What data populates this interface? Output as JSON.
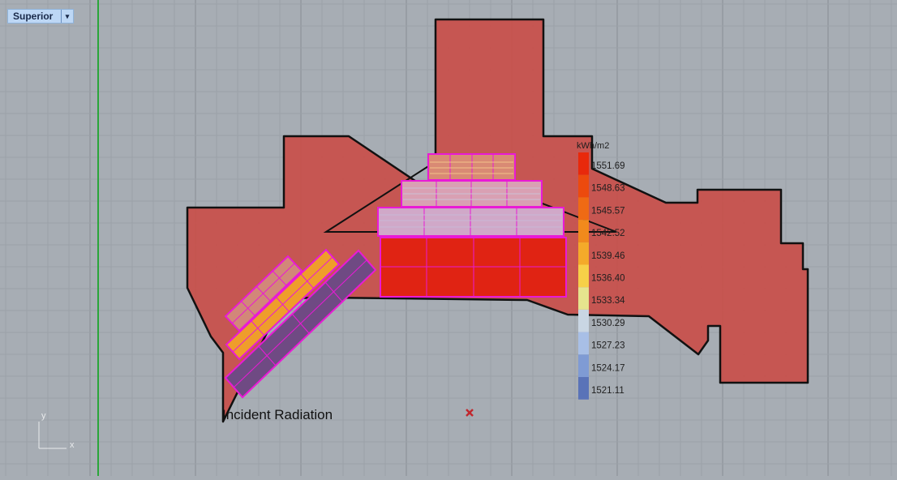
{
  "viewport": {
    "name": "Superior",
    "dropdown_glyph": "▾"
  },
  "legend": {
    "unit": "kWh/m2",
    "values": [
      "1551.69",
      "1548.63",
      "1545.57",
      "1542.52",
      "1539.46",
      "1536.40",
      "1533.34",
      "1530.29",
      "1527.23",
      "1524.17",
      "1521.11"
    ],
    "colors": [
      "#e8290b",
      "#ec4a0e",
      "#ef6a14",
      "#f18a1c",
      "#f4aa2a",
      "#f7d048",
      "#e6e48e",
      "#c9d6e3",
      "#a8bfe6",
      "#7f9bd4",
      "#5a73b8"
    ]
  },
  "title": "Incident Radiation",
  "axes": {
    "y": "y",
    "x": "x"
  },
  "colors": {
    "background": "#a7adb4",
    "grid_minor": "#9ba1a8",
    "grid_major": "#8d939a",
    "site_fill": "#c8504a",
    "panel_outline": "#e91ad6",
    "y_axis": "#2aa63a",
    "marker": "#c1272d"
  }
}
